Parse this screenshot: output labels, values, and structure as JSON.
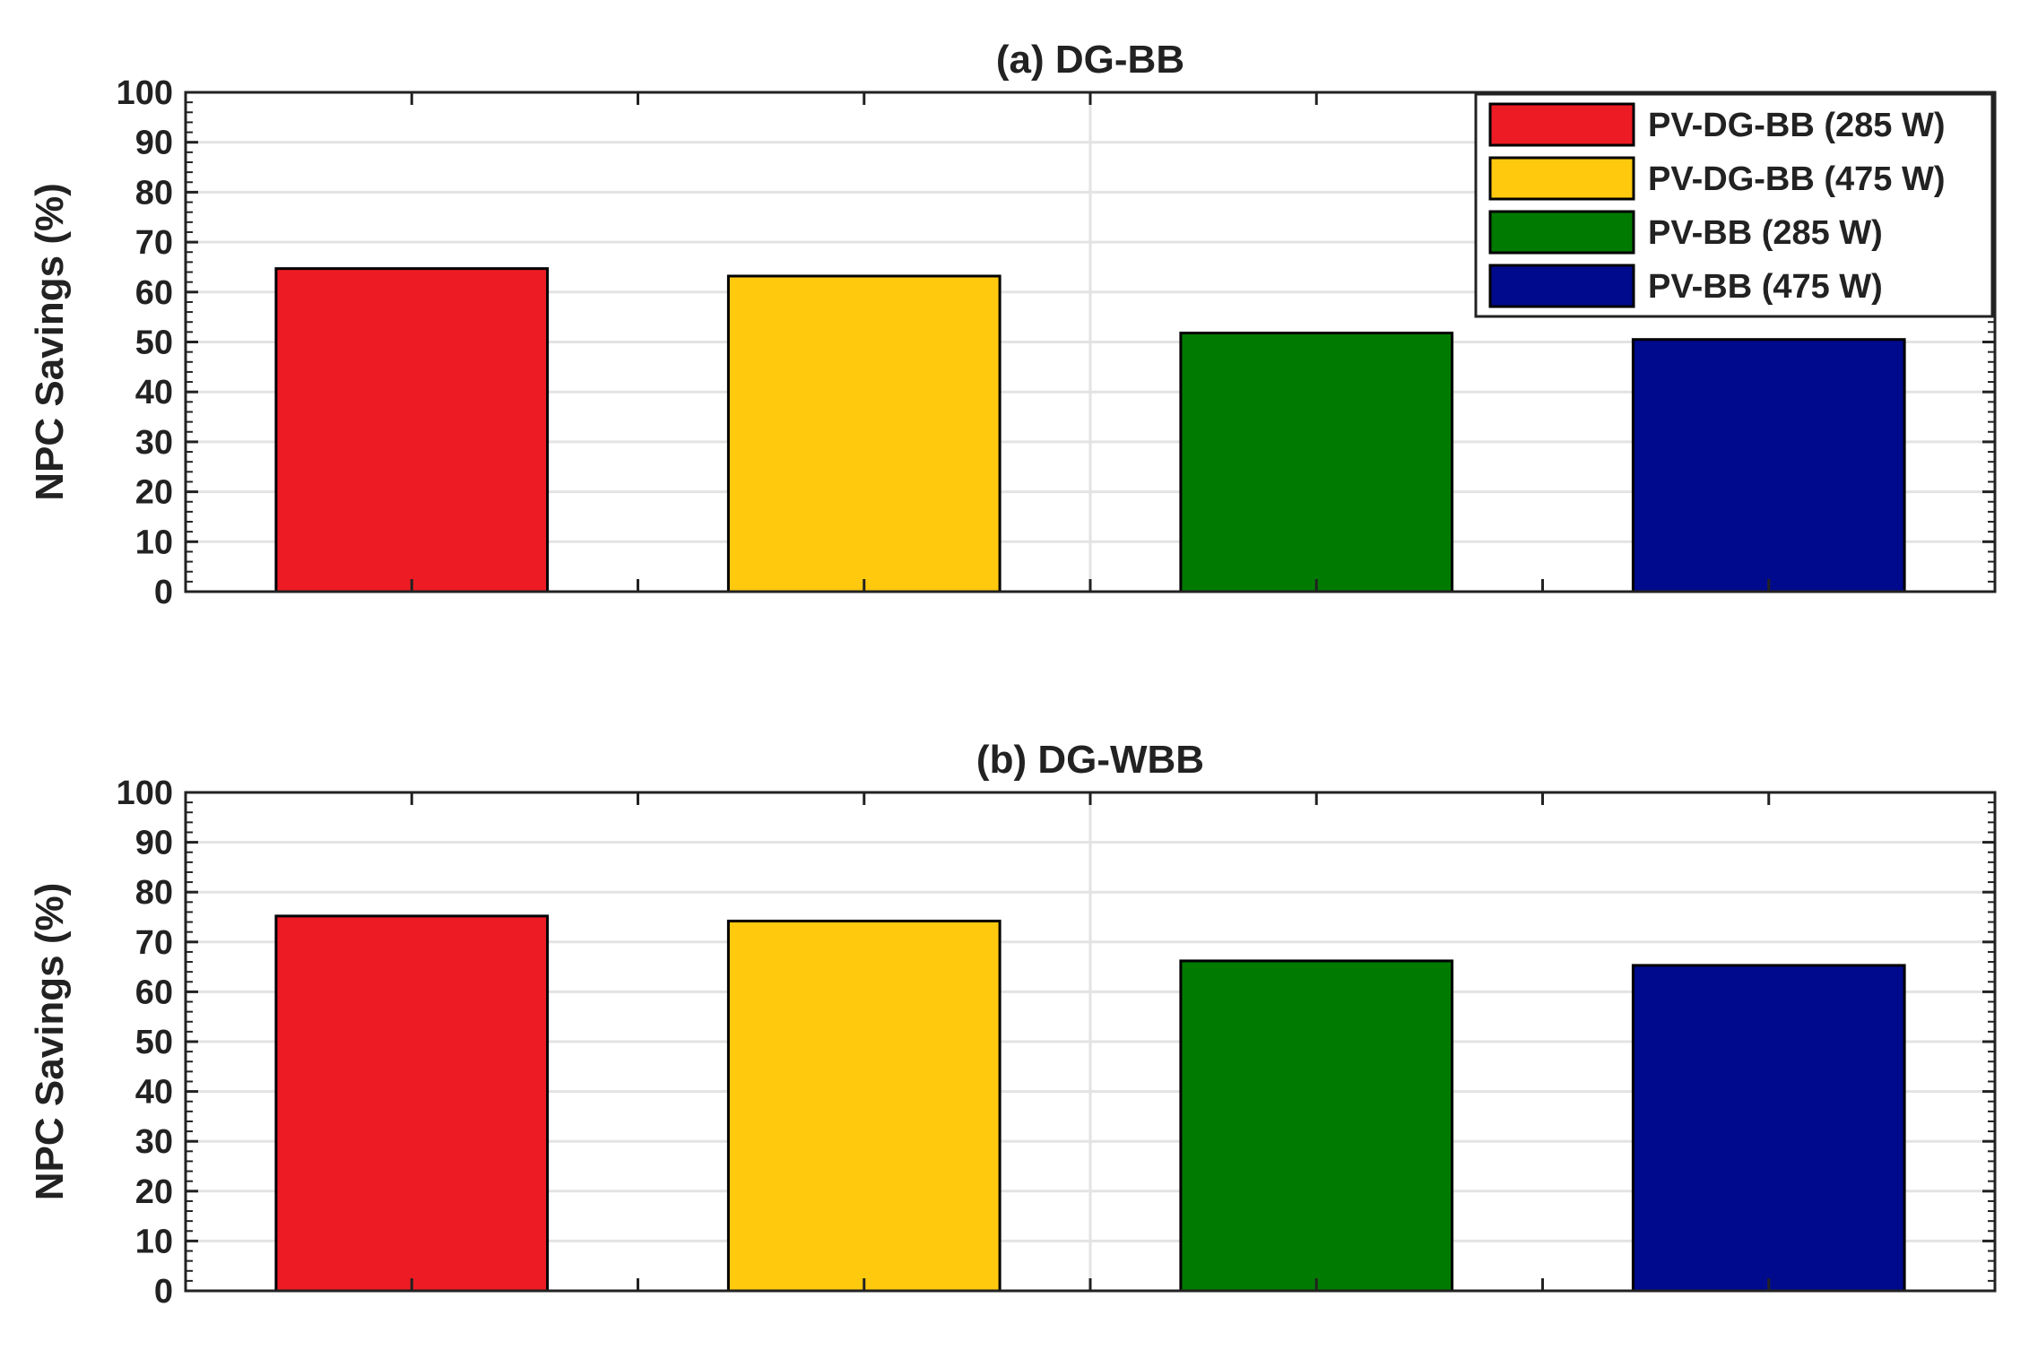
{
  "legend": {
    "placement": "top-right",
    "entries": [
      {
        "label": "PV-DG-BB (285 W)",
        "color": "#ED1C24"
      },
      {
        "label": "PV-DG-BB (475 W)",
        "color": "#FFC90E"
      },
      {
        "label": "PV-BB (285 W)",
        "color": "#007A00"
      },
      {
        "label": "PV-BB (475 W)",
        "color": "#000A8C"
      }
    ]
  },
  "chart_data": [
    {
      "type": "bar",
      "title": "(a) DG-BB",
      "xlabel": "",
      "ylabel": "NPC Savings (%)",
      "ylim": [
        0,
        100
      ],
      "yticks": [
        "0",
        "10",
        "20",
        "30",
        "40",
        "50",
        "60",
        "70",
        "80",
        "90",
        "100"
      ],
      "grid": true,
      "categories": [
        "PV-DG-BB (285 W)",
        "PV-DG-BB (475 W)",
        "PV-BB (285 W)",
        "PV-BB (475 W)"
      ],
      "values": [
        64.7,
        63.2,
        51.8,
        50.5
      ],
      "colors": [
        "#ED1C24",
        "#FFC90E",
        "#007A00",
        "#000A8C"
      ],
      "legend": true
    },
    {
      "type": "bar",
      "title": "(b) DG-WBB",
      "xlabel": "",
      "ylabel": "NPC Savings (%)",
      "ylim": [
        0,
        100
      ],
      "yticks": [
        "0",
        "10",
        "20",
        "30",
        "40",
        "50",
        "60",
        "70",
        "80",
        "90",
        "100"
      ],
      "grid": true,
      "categories": [
        "PV-DG-BB (285 W)",
        "PV-DG-BB (475 W)",
        "PV-BB (285 W)",
        "PV-BB (475 W)"
      ],
      "values": [
        75.2,
        74.2,
        66.2,
        65.3
      ],
      "colors": [
        "#ED1C24",
        "#FFC90E",
        "#007A00",
        "#000A8C"
      ],
      "legend": false
    }
  ]
}
